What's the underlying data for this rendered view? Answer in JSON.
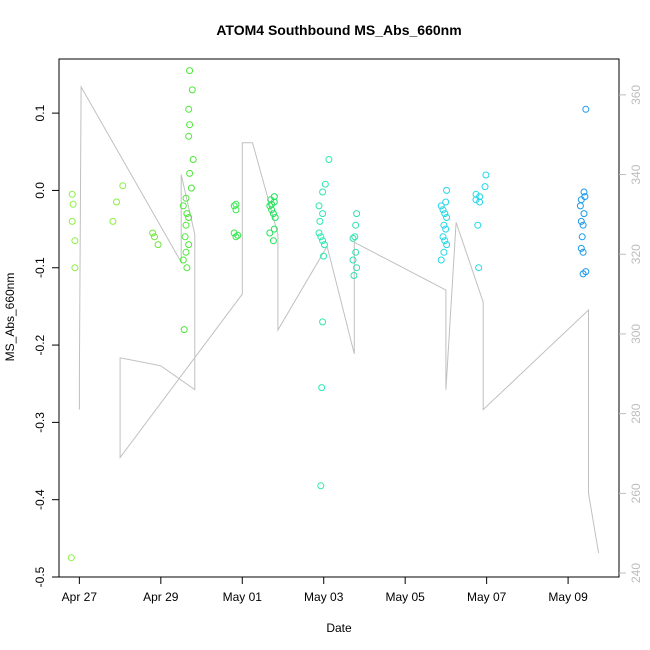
{
  "chart_data": {
    "type": "scatter",
    "title": "ATOM4 Southbound MS_Abs_660nm",
    "xlabel": "Date",
    "ylabel": "MS_Abs_660nm",
    "xlim": [
      "2023-04-26T12:00",
      "2023-05-10T06:00"
    ],
    "ylim": [
      -0.5,
      0.17
    ],
    "y2lim": [
      239,
      369
    ],
    "x_ticks": [
      {
        "date": "2023-04-27",
        "label": "Apr 27"
      },
      {
        "date": "2023-04-29",
        "label": "Apr 29"
      },
      {
        "date": "2023-05-01",
        "label": "May 01"
      },
      {
        "date": "2023-05-03",
        "label": "May 03"
      },
      {
        "date": "2023-05-05",
        "label": "May 05"
      },
      {
        "date": "2023-05-07",
        "label": "May 07"
      },
      {
        "date": "2023-05-09",
        "label": "May 09"
      }
    ],
    "y_ticks": [
      -0.5,
      -0.4,
      -0.3,
      -0.2,
      -0.1,
      0.0,
      0.1
    ],
    "y_tick_labels": [
      "-0.5",
      "-0.4",
      "-0.3",
      "-0.2",
      "-0.1",
      "0.0",
      "0.1"
    ],
    "y2_ticks": [
      240,
      260,
      280,
      300,
      320,
      340,
      360
    ],
    "y2_tick_labels": [
      "240",
      "260",
      "280",
      "300",
      "320",
      "340",
      "360"
    ],
    "grid": false,
    "legend": "none",
    "colors": {
      "points_by_date": {
        "Apr 27": "#8ef040",
        "Apr 28": "#88f03e",
        "Apr 29": "#6fe63a",
        "Apr 30": "#4ee83a",
        "May 01": "#33e84a",
        "May 02": "#22e45a",
        "May 03": "#2be8b0",
        "May 04": "#2ee0b0",
        "May 06": "#22d8e8",
        "May 07": "#22d8e8",
        "May 09": "#1a9ae8"
      },
      "secondary_line": "#c0c0c0",
      "axis": "#000000",
      "right_axis": "#bdbdbd"
    },
    "series": [
      {
        "values": [
          {
            "x": "2023-04-27T00:00",
            "y": -0.005
          },
          {
            "x": "2023-04-27T00:00",
            "y": -0.018
          },
          {
            "x": "2023-04-27T00:00",
            "y": -0.04
          },
          {
            "x": "2023-04-27T00:00",
            "y": -0.065
          },
          {
            "x": "2023-04-27T00:00",
            "y": -0.1
          },
          {
            "x": "2023-04-27T00:00",
            "y": -0.475
          },
          {
            "x": "2023-04-28T00:00",
            "y": 0.006
          },
          {
            "x": "2023-04-28T00:00",
            "y": -0.015
          },
          {
            "x": "2023-04-28T00:00",
            "y": -0.04
          },
          {
            "x": "2023-04-29T00:00",
            "y": -0.055
          },
          {
            "x": "2023-04-29T00:00",
            "y": -0.06
          },
          {
            "x": "2023-04-29T00:00",
            "y": -0.07
          },
          {
            "x": "2023-04-29T18:00",
            "y": 0.155
          },
          {
            "x": "2023-04-29T18:00",
            "y": 0.13
          },
          {
            "x": "2023-04-29T18:00",
            "y": 0.105
          },
          {
            "x": "2023-04-29T18:00",
            "y": 0.085
          },
          {
            "x": "2023-04-29T18:00",
            "y": 0.07
          },
          {
            "x": "2023-04-29T18:00",
            "y": 0.04
          },
          {
            "x": "2023-04-29T18:00",
            "y": 0.022
          },
          {
            "x": "2023-04-29T18:00",
            "y": 0.003
          },
          {
            "x": "2023-04-29T18:00",
            "y": -0.01
          },
          {
            "x": "2023-04-29T18:00",
            "y": -0.02
          },
          {
            "x": "2023-04-29T18:00",
            "y": -0.03
          },
          {
            "x": "2023-04-29T18:00",
            "y": -0.035
          },
          {
            "x": "2023-04-29T18:00",
            "y": -0.045
          },
          {
            "x": "2023-04-29T18:00",
            "y": -0.06
          },
          {
            "x": "2023-04-29T18:00",
            "y": -0.07
          },
          {
            "x": "2023-04-29T18:00",
            "y": -0.08
          },
          {
            "x": "2023-04-29T18:00",
            "y": -0.09
          },
          {
            "x": "2023-04-29T18:00",
            "y": -0.1
          },
          {
            "x": "2023-04-29T18:00",
            "y": -0.18
          },
          {
            "x": "2023-05-01T00:00",
            "y": -0.018
          },
          {
            "x": "2023-05-01T00:00",
            "y": -0.02
          },
          {
            "x": "2023-05-01T00:00",
            "y": -0.025
          },
          {
            "x": "2023-05-01T00:00",
            "y": -0.055
          },
          {
            "x": "2023-05-01T00:00",
            "y": -0.058
          },
          {
            "x": "2023-05-01T00:00",
            "y": -0.06
          },
          {
            "x": "2023-05-01T21:00",
            "y": -0.008
          },
          {
            "x": "2023-05-01T21:00",
            "y": -0.012
          },
          {
            "x": "2023-05-01T21:00",
            "y": -0.015
          },
          {
            "x": "2023-05-01T21:00",
            "y": -0.018
          },
          {
            "x": "2023-05-01T21:00",
            "y": -0.02
          },
          {
            "x": "2023-05-01T21:00",
            "y": -0.025
          },
          {
            "x": "2023-05-01T21:00",
            "y": -0.03
          },
          {
            "x": "2023-05-01T21:00",
            "y": -0.035
          },
          {
            "x": "2023-05-01T21:00",
            "y": -0.05
          },
          {
            "x": "2023-05-01T21:00",
            "y": -0.055
          },
          {
            "x": "2023-05-01T21:00",
            "y": -0.065
          },
          {
            "x": "2023-05-03T02:00",
            "y": 0.04
          },
          {
            "x": "2023-05-03T02:00",
            "y": 0.008
          },
          {
            "x": "2023-05-03T02:00",
            "y": -0.002
          },
          {
            "x": "2023-05-03T02:00",
            "y": -0.02
          },
          {
            "x": "2023-05-03T02:00",
            "y": -0.03
          },
          {
            "x": "2023-05-03T02:00",
            "y": -0.04
          },
          {
            "x": "2023-05-03T02:00",
            "y": -0.055
          },
          {
            "x": "2023-05-03T02:00",
            "y": -0.06
          },
          {
            "x": "2023-05-03T02:00",
            "y": -0.065
          },
          {
            "x": "2023-05-03T02:00",
            "y": -0.07
          },
          {
            "x": "2023-05-03T02:00",
            "y": -0.085
          },
          {
            "x": "2023-05-03T02:00",
            "y": -0.17
          },
          {
            "x": "2023-05-03T02:00",
            "y": -0.255
          },
          {
            "x": "2023-05-03T02:00",
            "y": -0.382
          },
          {
            "x": "2023-05-03T22:00",
            "y": -0.03
          },
          {
            "x": "2023-05-03T22:00",
            "y": -0.045
          },
          {
            "x": "2023-05-03T22:00",
            "y": -0.06
          },
          {
            "x": "2023-05-03T22:00",
            "y": -0.062
          },
          {
            "x": "2023-05-03T22:00",
            "y": -0.08
          },
          {
            "x": "2023-05-03T22:00",
            "y": -0.09
          },
          {
            "x": "2023-05-03T22:00",
            "y": -0.1
          },
          {
            "x": "2023-05-03T22:00",
            "y": -0.11
          },
          {
            "x": "2023-05-06T02:00",
            "y": 0.0
          },
          {
            "x": "2023-05-06T02:00",
            "y": -0.015
          },
          {
            "x": "2023-05-06T02:00",
            "y": -0.02
          },
          {
            "x": "2023-05-06T02:00",
            "y": -0.025
          },
          {
            "x": "2023-05-06T02:00",
            "y": -0.03
          },
          {
            "x": "2023-05-06T02:00",
            "y": -0.035
          },
          {
            "x": "2023-05-06T02:00",
            "y": -0.045
          },
          {
            "x": "2023-05-06T02:00",
            "y": -0.05
          },
          {
            "x": "2023-05-06T02:00",
            "y": -0.06
          },
          {
            "x": "2023-05-06T02:00",
            "y": -0.065
          },
          {
            "x": "2023-05-06T02:00",
            "y": -0.07
          },
          {
            "x": "2023-05-06T02:00",
            "y": -0.08
          },
          {
            "x": "2023-05-06T02:00",
            "y": -0.09
          },
          {
            "x": "2023-05-06T22:00",
            "y": 0.02
          },
          {
            "x": "2023-05-06T22:00",
            "y": 0.005
          },
          {
            "x": "2023-05-06T22:00",
            "y": -0.005
          },
          {
            "x": "2023-05-06T22:00",
            "y": -0.008
          },
          {
            "x": "2023-05-06T22:00",
            "y": -0.012
          },
          {
            "x": "2023-05-06T22:00",
            "y": -0.015
          },
          {
            "x": "2023-05-06T22:00",
            "y": -0.045
          },
          {
            "x": "2023-05-06T22:00",
            "y": -0.1
          },
          {
            "x": "2023-05-09T12:00",
            "y": 0.105
          },
          {
            "x": "2023-05-09T12:00",
            "y": -0.002
          },
          {
            "x": "2023-05-09T12:00",
            "y": -0.008
          },
          {
            "x": "2023-05-09T12:00",
            "y": -0.012
          },
          {
            "x": "2023-05-09T12:00",
            "y": -0.02
          },
          {
            "x": "2023-05-09T12:00",
            "y": -0.03
          },
          {
            "x": "2023-05-09T12:00",
            "y": -0.04
          },
          {
            "x": "2023-05-09T12:00",
            "y": -0.045
          },
          {
            "x": "2023-05-09T12:00",
            "y": -0.06
          },
          {
            "x": "2023-05-09T12:00",
            "y": -0.075
          },
          {
            "x": "2023-05-09T12:00",
            "y": -0.08
          },
          {
            "x": "2023-05-09T12:00",
            "y": -0.105
          },
          {
            "x": "2023-05-09T12:00",
            "y": -0.108
          }
        ]
      },
      {
        "axis": "right",
        "style": "line",
        "values": [
          {
            "x": "2023-04-27T00:00",
            "y": 281
          },
          {
            "x": "2023-04-27T00:00",
            "y": 290
          },
          {
            "x": "2023-04-27T01:00",
            "y": 362
          },
          {
            "x": "2023-04-29T12:00",
            "y": 318
          },
          {
            "x": "2023-04-29T12:00",
            "y": 340
          },
          {
            "x": "2023-04-29T20:00",
            "y": 325
          },
          {
            "x": "2023-04-29T20:00",
            "y": 286
          },
          {
            "x": "2023-04-29T00:00",
            "y": 292
          },
          {
            "x": "2023-04-28T00:00",
            "y": 294
          },
          {
            "x": "2023-04-28T00:00",
            "y": 269
          },
          {
            "x": "2023-05-01T00:00",
            "y": 310
          },
          {
            "x": "2023-05-01T00:00",
            "y": 348
          },
          {
            "x": "2023-05-01T06:00",
            "y": 348
          },
          {
            "x": "2023-05-01T21:00",
            "y": 325
          },
          {
            "x": "2023-05-01T21:00",
            "y": 301
          },
          {
            "x": "2023-05-03T02:00",
            "y": 322
          },
          {
            "x": "2023-05-03T18:00",
            "y": 295
          },
          {
            "x": "2023-05-03T18:00",
            "y": 323
          },
          {
            "x": "2023-05-06T00:00",
            "y": 311
          },
          {
            "x": "2023-05-06T00:00",
            "y": 286
          },
          {
            "x": "2023-05-06T06:00",
            "y": 328
          },
          {
            "x": "2023-05-06T22:00",
            "y": 308
          },
          {
            "x": "2023-05-06T22:00",
            "y": 281
          },
          {
            "x": "2023-05-09T12:00",
            "y": 306
          },
          {
            "x": "2023-05-09T12:00",
            "y": 260
          },
          {
            "x": "2023-05-09T18:00",
            "y": 245
          }
        ]
      }
    ]
  }
}
